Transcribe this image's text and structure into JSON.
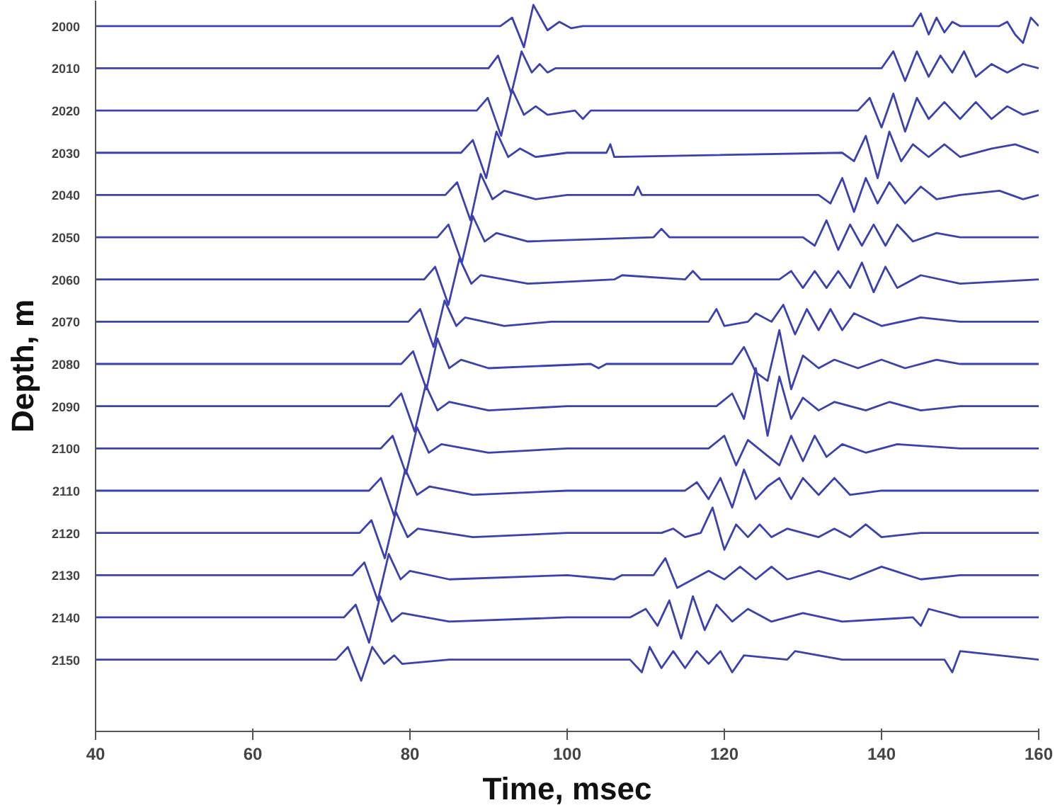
{
  "chart_data": {
    "type": "line",
    "xlabel": "Time, msec",
    "ylabel": "Depth, m",
    "xlim": [
      40,
      160
    ],
    "xticks": [
      40,
      60,
      80,
      100,
      120,
      140,
      160
    ],
    "ylim": [
      2167,
      1994
    ],
    "yticks": [
      2000,
      2010,
      2020,
      2030,
      2040,
      2050,
      2060,
      2070,
      2080,
      2090,
      2100,
      2110,
      2120,
      2130,
      2140,
      2150
    ],
    "grid": false,
    "marker": "none",
    "line_style": "solid",
    "series": [
      {
        "color": "#3b42b0",
        "x": [
          40,
          91.5,
          93,
          94.5,
          95.7,
          97.5,
          99,
          100.5,
          102,
          144,
          145,
          146,
          147,
          148,
          149,
          150,
          155,
          156,
          157,
          158,
          159,
          160
        ],
        "values": [
          2000,
          2000,
          1998,
          2005,
          1995,
          2001,
          1999,
          2000.5,
          2000,
          2000,
          1997,
          2002,
          1998,
          2001.5,
          1999,
          2000,
          2000,
          1999,
          2002,
          2004,
          1998,
          2000
        ]
      },
      {
        "color": "#3b42b0",
        "x": [
          40,
          90,
          91.2,
          92.9,
          94.2,
          95.5,
          96.5,
          97.5,
          98.5,
          140,
          141.5,
          143,
          144.5,
          146,
          147.5,
          149,
          150.5,
          152,
          154,
          156,
          158,
          160
        ],
        "values": [
          2010,
          2010,
          2007,
          2016,
          2006,
          2011,
          2009,
          2011,
          2010,
          2010,
          2006,
          2013,
          2006,
          2012,
          2007,
          2011,
          2006,
          2012,
          2009,
          2011,
          2009,
          2010
        ]
      },
      {
        "color": "#3b42b0",
        "x": [
          40,
          88.5,
          89.9,
          91.6,
          93,
          94.5,
          96,
          97.5,
          101,
          102,
          103,
          137,
          138.5,
          140,
          141.5,
          143,
          144.5,
          146,
          148,
          150,
          152,
          154,
          156,
          158,
          160
        ],
        "values": [
          2020,
          2020,
          2017,
          2026,
          2015,
          2021,
          2019,
          2021,
          2020,
          2022,
          2020,
          2020,
          2017,
          2024,
          2016,
          2025,
          2017,
          2022,
          2018,
          2022,
          2018,
          2022,
          2019,
          2021,
          2020
        ]
      },
      {
        "color": "#3b42b0",
        "x": [
          40,
          86.5,
          88,
          89.7,
          91,
          92.5,
          94,
          96,
          100,
          105,
          105.5,
          106,
          135,
          136.5,
          138,
          139.5,
          141,
          142.5,
          144,
          146,
          148,
          150,
          154,
          157,
          160
        ],
        "values": [
          2030,
          2030,
          2027,
          2036,
          2025,
          2031,
          2029,
          2031,
          2030,
          2030,
          2028,
          2031,
          2030,
          2032,
          2026,
          2036,
          2025,
          2032,
          2028,
          2031,
          2028,
          2031,
          2029,
          2028,
          2030
        ]
      },
      {
        "color": "#3b42b0",
        "x": [
          40,
          84.5,
          86,
          87.7,
          89,
          90.5,
          92,
          96,
          100,
          108.5,
          109,
          109.5,
          132,
          133.5,
          135,
          136.5,
          138,
          139.5,
          141,
          143,
          145,
          147,
          150,
          155,
          158,
          160
        ],
        "values": [
          2040,
          2040,
          2037,
          2046,
          2035,
          2041,
          2039,
          2041,
          2040,
          2040,
          2038,
          2040,
          2040,
          2042,
          2036,
          2044,
          2036,
          2042,
          2037,
          2042,
          2038,
          2041,
          2040,
          2039,
          2041,
          2040
        ]
      },
      {
        "color": "#3b42b0",
        "x": [
          40,
          83.5,
          84.9,
          86.6,
          88,
          89.5,
          91,
          95,
          111,
          112,
          113,
          130,
          131.5,
          133,
          134.5,
          136,
          137.5,
          139,
          140.5,
          142,
          144,
          147,
          150,
          155,
          160
        ],
        "values": [
          2050,
          2050,
          2047,
          2056,
          2045,
          2051,
          2049,
          2051,
          2050,
          2048,
          2050,
          2050,
          2052,
          2046,
          2053,
          2047,
          2052,
          2047,
          2052,
          2047,
          2051,
          2049,
          2050,
          2050,
          2050
        ]
      },
      {
        "color": "#3b42b0",
        "x": [
          40,
          81.8,
          83.2,
          84.9,
          86.3,
          87.8,
          89,
          95,
          106,
          107,
          115,
          116,
          117,
          127,
          128.5,
          130,
          131.5,
          133,
          134.5,
          136,
          137.5,
          139,
          140.5,
          142,
          145,
          150,
          160
        ],
        "values": [
          2060,
          2060,
          2057,
          2066,
          2055,
          2061,
          2059,
          2061,
          2060,
          2059,
          2060,
          2058,
          2060,
          2060,
          2058,
          2062,
          2058,
          2062,
          2058,
          2062,
          2056,
          2063,
          2057,
          2062,
          2059,
          2061,
          2060
        ]
      },
      {
        "color": "#3b42b0",
        "x": [
          40,
          79.8,
          81.3,
          83,
          84.4,
          85.9,
          87,
          92,
          98,
          118,
          119,
          120,
          123,
          124,
          126,
          127.5,
          129,
          130.5,
          132,
          133.5,
          135,
          136.5,
          140,
          145,
          150,
          160
        ],
        "values": [
          2070,
          2070,
          2067,
          2076,
          2065,
          2071,
          2069,
          2071,
          2070,
          2070,
          2067,
          2071,
          2070,
          2068,
          2070,
          2066,
          2073,
          2067,
          2072,
          2067,
          2072,
          2068,
          2071,
          2069,
          2070,
          2070
        ]
      },
      {
        "color": "#3b42b0",
        "x": [
          40,
          78.9,
          80.4,
          82.1,
          83.5,
          85,
          86.5,
          90,
          103,
          104,
          105,
          121,
          122.5,
          124,
          125.5,
          127,
          128.5,
          130,
          132,
          134,
          137,
          140,
          143,
          147,
          150,
          160
        ],
        "values": [
          2080,
          2080,
          2077,
          2086,
          2074,
          2081,
          2079,
          2081,
          2080,
          2081,
          2080,
          2080,
          2076,
          2082,
          2084,
          2072,
          2086,
          2078,
          2081,
          2079,
          2081,
          2079,
          2081,
          2079,
          2080,
          2080
        ]
      },
      {
        "color": "#3b42b0",
        "x": [
          40,
          77.4,
          78.9,
          80.6,
          82,
          83.5,
          85,
          90,
          100,
          119,
          121,
          122.5,
          124,
          125.5,
          127,
          128.5,
          130,
          132,
          134,
          138,
          141,
          145,
          150,
          160
        ],
        "values": [
          2090,
          2090,
          2087,
          2096,
          2085,
          2091,
          2089,
          2091,
          2090,
          2090,
          2087,
          2093,
          2081,
          2097,
          2083,
          2093,
          2088,
          2091,
          2089,
          2091,
          2089,
          2091,
          2090,
          2090
        ]
      },
      {
        "color": "#3b42b0",
        "x": [
          40,
          76.3,
          77.8,
          79.5,
          80.9,
          82.4,
          84,
          90,
          100,
          118,
          120,
          121.5,
          123,
          125,
          127,
          128.5,
          130,
          131.5,
          133,
          135,
          138,
          142,
          150,
          160
        ],
        "values": [
          2100,
          2100,
          2097,
          2106,
          2095,
          2101,
          2099,
          2101,
          2100,
          2100,
          2097,
          2104,
          2098,
          2101,
          2104,
          2097,
          2103,
          2097,
          2102,
          2099,
          2101,
          2099,
          2100,
          2100
        ]
      },
      {
        "color": "#3b42b0",
        "x": [
          40,
          74.8,
          76.3,
          78,
          79.4,
          80.9,
          82.5,
          88,
          100,
          115,
          116.5,
          118,
          119.5,
          121,
          122.5,
          124,
          125.5,
          127,
          128.5,
          130,
          132,
          134,
          136,
          140,
          150,
          160
        ],
        "values": [
          2110,
          2110,
          2107,
          2116,
          2105,
          2111,
          2109,
          2111,
          2110,
          2110,
          2108,
          2112,
          2107,
          2114,
          2105,
          2112,
          2109,
          2107,
          2112,
          2107,
          2111,
          2107,
          2111,
          2110,
          2110,
          2110
        ]
      },
      {
        "color": "#3b42b0",
        "x": [
          40,
          73.6,
          75.1,
          76.8,
          78.2,
          79.7,
          81,
          88,
          100,
          112,
          113.5,
          115,
          117,
          118.5,
          120,
          121.5,
          123,
          124.5,
          126,
          128,
          132,
          134,
          136,
          138,
          140,
          145,
          160
        ],
        "values": [
          2120,
          2120,
          2117,
          2126,
          2115,
          2121,
          2119,
          2121,
          2120,
          2120,
          2119,
          2121,
          2120,
          2114,
          2124,
          2118,
          2121,
          2118,
          2121,
          2119,
          2121,
          2119,
          2121,
          2118,
          2121,
          2120,
          2120
        ]
      },
      {
        "color": "#3b42b0",
        "x": [
          40,
          72.7,
          74.2,
          75.9,
          77.3,
          78.8,
          80,
          85,
          100,
          106,
          107,
          111,
          112.5,
          114,
          116,
          118,
          120,
          122,
          124,
          126,
          128,
          132,
          136,
          140,
          145,
          150,
          160
        ],
        "values": [
          2130,
          2130,
          2127,
          2136,
          2125,
          2131,
          2129,
          2131,
          2130,
          2131,
          2130,
          2130,
          2126,
          2133,
          2131,
          2129,
          2131,
          2128,
          2131,
          2128,
          2131,
          2129,
          2131,
          2128,
          2131,
          2130,
          2130
        ]
      },
      {
        "color": "#3b42b0",
        "x": [
          40,
          71.6,
          73.1,
          74.8,
          76.2,
          77.7,
          79,
          85,
          100,
          108,
          110,
          111.5,
          113,
          114.5,
          116,
          117.5,
          119,
          121,
          123,
          126,
          130,
          135,
          144,
          145,
          146,
          150,
          160
        ],
        "values": [
          2140,
          2140,
          2137,
          2146,
          2135,
          2141,
          2139,
          2141,
          2140,
          2140,
          2138,
          2142,
          2136,
          2145,
          2135,
          2143,
          2137,
          2141,
          2138,
          2141,
          2139,
          2141,
          2140,
          2142,
          2138,
          2140,
          2140
        ]
      },
      {
        "color": "#3b42b0",
        "x": [
          40,
          70.6,
          72.1,
          73.8,
          75.2,
          76.7,
          78,
          79,
          85,
          100,
          108,
          109.5,
          110.5,
          112,
          113.5,
          115,
          116.5,
          118,
          119.5,
          121,
          122.5,
          128,
          129,
          135,
          148,
          149,
          150,
          160
        ],
        "values": [
          2150,
          2150,
          2147,
          2155,
          2147,
          2151,
          2149,
          2151,
          2150,
          2150,
          2150,
          2153,
          2147,
          2152,
          2148,
          2152,
          2148,
          2151,
          2148,
          2153,
          2149,
          2150,
          2148,
          2150,
          2150,
          2153,
          2148,
          2150
        ]
      }
    ]
  }
}
